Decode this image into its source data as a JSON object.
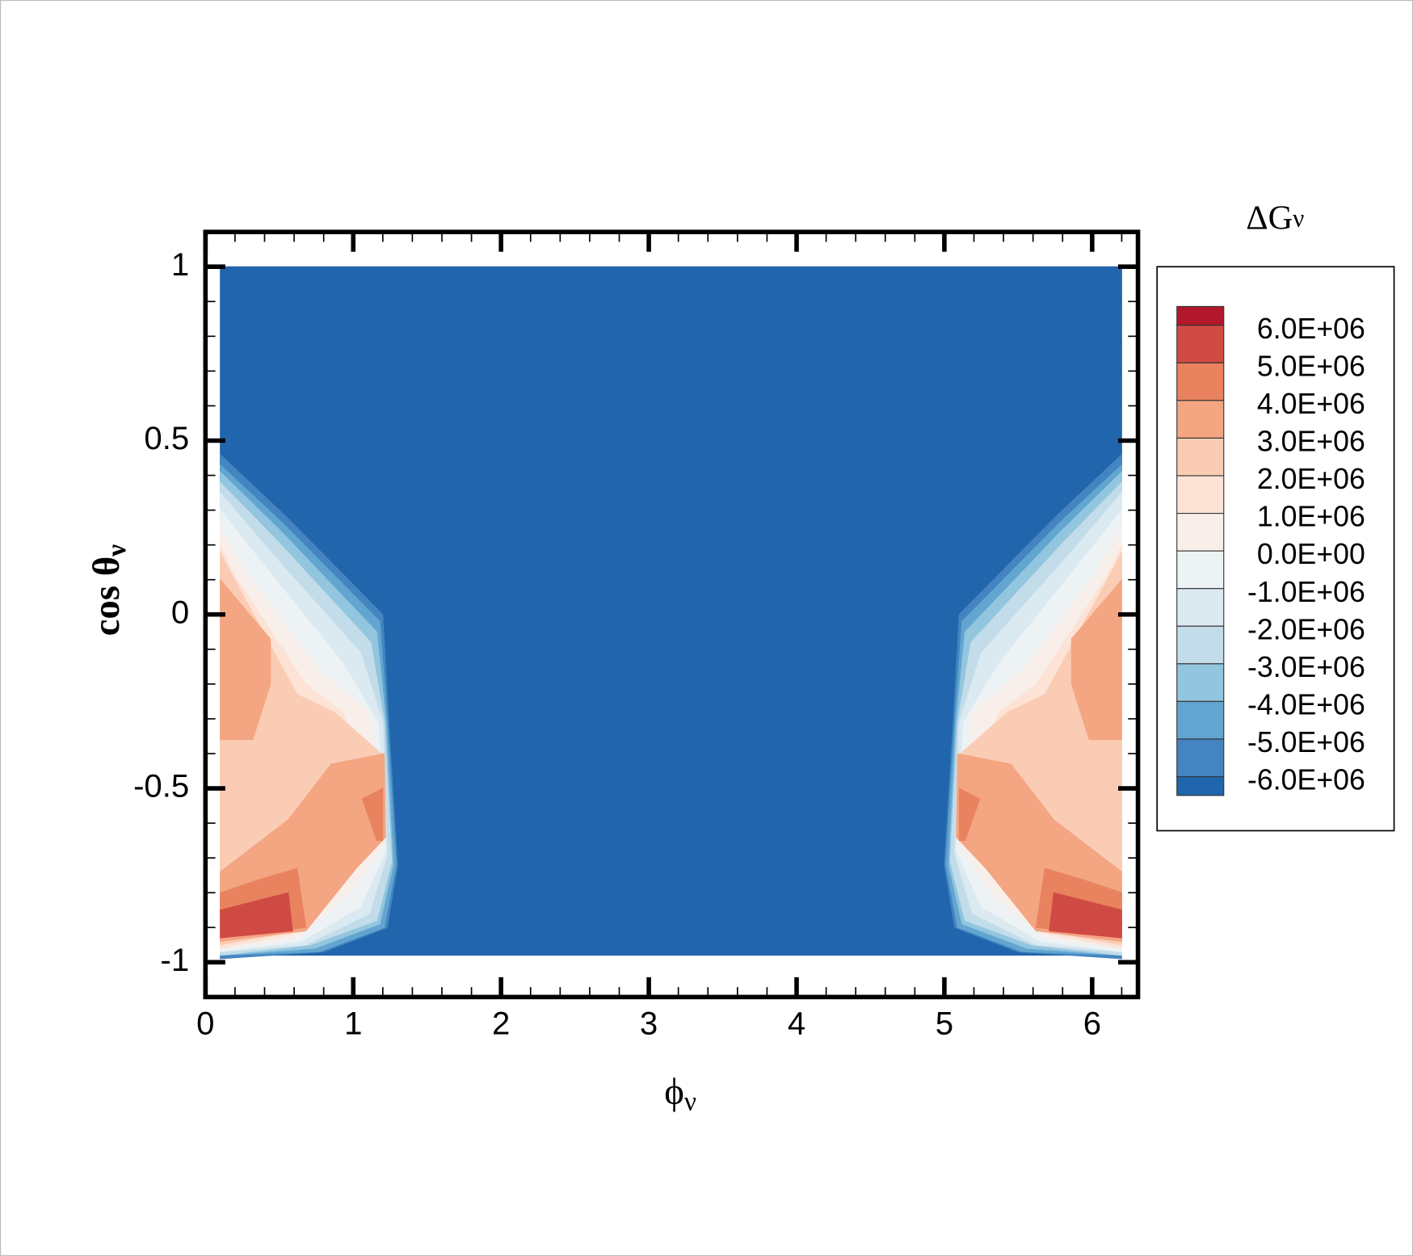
{
  "chart_data": {
    "type": "contour",
    "title": {
      "text": "ΔG",
      "sub": "ν"
    },
    "x_label": {
      "text": "ϕ",
      "sub": "ν"
    },
    "y_label": {
      "text": "cos θ",
      "sub": "ν"
    },
    "xlim": [
      0,
      6.31
    ],
    "ylim": [
      -1.1,
      1.1
    ],
    "xticks": [
      0,
      1,
      2,
      3,
      4,
      5,
      6
    ],
    "yticks": [
      1,
      0.5,
      0,
      -0.5,
      -1
    ],
    "xminor": 0.2,
    "yminor": 0.1,
    "levels": [
      {
        "value": 6000000,
        "label": "6.0E+06"
      },
      {
        "value": 5000000,
        "label": "5.0E+06"
      },
      {
        "value": 4000000,
        "label": "4.0E+06"
      },
      {
        "value": 3000000,
        "label": "3.0E+06"
      },
      {
        "value": 2000000,
        "label": "2.0E+06"
      },
      {
        "value": 1000000,
        "label": "1.0E+06"
      },
      {
        "value": 0,
        "label": "0.0E+00"
      },
      {
        "value": -1000000,
        "label": "-1.0E+06"
      },
      {
        "value": -2000000,
        "label": "-2.0E+06"
      },
      {
        "value": -3000000,
        "label": "-3.0E+06"
      },
      {
        "value": -4000000,
        "label": "-4.0E+06"
      },
      {
        "value": -5000000,
        "label": "-5.0E+06"
      },
      {
        "value": -6000000,
        "label": "-6.0E+06"
      }
    ],
    "colors": [
      "#b2182b",
      "#d04a44",
      "#e8825f",
      "#f4a582",
      "#fbccb4",
      "#fde3d6",
      "#f9efea",
      "#edf2f5",
      "#dbe9f1",
      "#c2dcea",
      "#92c5de",
      "#62a5d0",
      "#4485c1",
      "#2166ac"
    ],
    "regions": [
      {
        "range": [
          null,
          -6000000
        ],
        "points": [
          [
            0.1,
            1.0
          ],
          [
            6.2,
            1.0
          ],
          [
            6.2,
            -0.98
          ],
          [
            0.1,
            -0.98
          ]
        ]
      },
      {
        "range": [
          -6000000,
          -5000000
        ],
        "points": [
          [
            0.1,
            0.46
          ],
          [
            0.55,
            0.28
          ],
          [
            1.2,
            0.0
          ],
          [
            1.24,
            -0.31
          ],
          [
            1.3,
            -0.72
          ],
          [
            1.23,
            -0.9
          ],
          [
            0.8,
            -0.97
          ],
          [
            0.1,
            -0.99
          ]
        ]
      },
      {
        "range": [
          -5000000,
          -4000000
        ],
        "points": [
          [
            0.1,
            0.43
          ],
          [
            0.53,
            0.26
          ],
          [
            1.18,
            -0.02
          ],
          [
            1.23,
            -0.31
          ],
          [
            1.29,
            -0.72
          ],
          [
            1.21,
            -0.9
          ],
          [
            0.77,
            -0.97
          ],
          [
            0.1,
            -0.98
          ]
        ]
      },
      {
        "range": [
          -4000000,
          -3000000
        ],
        "points": [
          [
            0.1,
            0.41
          ],
          [
            0.51,
            0.24
          ],
          [
            1.16,
            -0.05
          ],
          [
            1.22,
            -0.31
          ],
          [
            1.27,
            -0.72
          ],
          [
            1.18,
            -0.89
          ],
          [
            0.74,
            -0.96
          ],
          [
            0.1,
            -0.98
          ]
        ]
      },
      {
        "range": [
          -3000000,
          -2000000
        ],
        "points": [
          [
            0.1,
            0.38
          ],
          [
            0.49,
            0.21
          ],
          [
            1.12,
            -0.08
          ],
          [
            1.21,
            -0.31
          ],
          [
            1.26,
            -0.71
          ],
          [
            1.16,
            -0.88
          ],
          [
            0.71,
            -0.95
          ],
          [
            0.1,
            -0.98
          ]
        ]
      },
      {
        "range": [
          -2000000,
          -1000000
        ],
        "points": [
          [
            0.1,
            0.35
          ],
          [
            0.44,
            0.18
          ],
          [
            1.05,
            -0.11
          ],
          [
            1.2,
            -0.31
          ],
          [
            1.23,
            -0.69
          ],
          [
            1.11,
            -0.86
          ],
          [
            0.68,
            -0.95
          ],
          [
            0.1,
            -0.97
          ]
        ]
      },
      {
        "range": [
          -1000000,
          0
        ],
        "points": [
          [
            0.1,
            0.3
          ],
          [
            0.38,
            0.15
          ],
          [
            0.93,
            -0.14
          ],
          [
            1.17,
            -0.31
          ],
          [
            1.22,
            -0.68
          ],
          [
            1.05,
            -0.84
          ],
          [
            0.65,
            -0.94
          ],
          [
            0.1,
            -0.97
          ]
        ]
      },
      {
        "range": [
          0,
          1000000
        ],
        "points": [
          [
            0.1,
            0.25
          ],
          [
            0.29,
            0.11
          ],
          [
            0.77,
            -0.16
          ],
          [
            1.11,
            -0.28
          ],
          [
            1.21,
            -0.66
          ],
          [
            0.96,
            -0.81
          ],
          [
            0.62,
            -0.93
          ],
          [
            0.1,
            -0.96
          ]
        ]
      },
      {
        "range": [
          1000000,
          2000000
        ],
        "points": [
          [
            0.1,
            0.2
          ],
          [
            0.2,
            0.11
          ],
          [
            0.68,
            -0.2
          ],
          [
            0.93,
            -0.28
          ],
          [
            1.2,
            -0.64
          ],
          [
            0.9,
            -0.78
          ],
          [
            0.59,
            -0.92
          ],
          [
            0.1,
            -0.96
          ]
        ]
      },
      {
        "range": [
          2000000,
          3000000
        ],
        "points": [
          [
            0.1,
            0.18
          ],
          [
            0.16,
            0.13
          ],
          [
            0.62,
            -0.23
          ],
          [
            0.87,
            -0.28
          ],
          [
            1.19,
            -0.4
          ],
          [
            1.22,
            -0.64
          ],
          [
            0.87,
            -0.76
          ],
          [
            0.62,
            -0.91
          ],
          [
            0.1,
            -0.95
          ]
        ]
      },
      {
        "range": [
          3000000,
          4000000
        ],
        "points": [
          [
            0.1,
            0.1
          ],
          [
            0.44,
            -0.07
          ],
          [
            0.44,
            -0.2
          ],
          [
            0.32,
            -0.36
          ],
          [
            0.1,
            -0.36
          ]
        ]
      },
      {
        "range": [
          3000000,
          4000000
        ],
        "points": [
          [
            0.1,
            -0.74
          ],
          [
            0.56,
            -0.59
          ],
          [
            0.85,
            -0.43
          ],
          [
            1.21,
            -0.4
          ],
          [
            1.22,
            -0.64
          ],
          [
            1.02,
            -0.73
          ],
          [
            0.68,
            -0.91
          ],
          [
            0.1,
            -0.94
          ]
        ]
      },
      {
        "range": [
          4000000,
          5000000
        ],
        "points": [
          [
            0.1,
            -0.8
          ],
          [
            0.38,
            -0.76
          ],
          [
            0.62,
            -0.73
          ],
          [
            0.68,
            -0.9
          ],
          [
            0.1,
            -0.93
          ]
        ]
      },
      {
        "range": [
          4000000,
          5000000
        ],
        "points": [
          [
            1.06,
            -0.53
          ],
          [
            1.2,
            -0.5
          ],
          [
            1.2,
            -0.65
          ],
          [
            1.16,
            -0.65
          ]
        ]
      },
      {
        "range": [
          5000000,
          6000000
        ],
        "points": [
          [
            0.1,
            -0.85
          ],
          [
            0.56,
            -0.8
          ],
          [
            0.59,
            -0.91
          ],
          [
            0.1,
            -0.93
          ]
        ]
      },
      {
        "range": [
          -6000000,
          -5000000
        ],
        "points": [
          [
            6.2,
            0.46
          ],
          [
            5.75,
            0.28
          ],
          [
            5.1,
            0.0
          ],
          [
            5.06,
            -0.31
          ],
          [
            5.0,
            -0.72
          ],
          [
            5.07,
            -0.9
          ],
          [
            5.5,
            -0.97
          ],
          [
            6.2,
            -0.99
          ]
        ]
      },
      {
        "range": [
          -5000000,
          -4000000
        ],
        "points": [
          [
            6.2,
            0.43
          ],
          [
            5.77,
            0.26
          ],
          [
            5.12,
            -0.02
          ],
          [
            5.07,
            -0.31
          ],
          [
            5.01,
            -0.72
          ],
          [
            5.09,
            -0.9
          ],
          [
            5.53,
            -0.97
          ],
          [
            6.2,
            -0.98
          ]
        ]
      },
      {
        "range": [
          -4000000,
          -3000000
        ],
        "points": [
          [
            6.2,
            0.41
          ],
          [
            5.79,
            0.24
          ],
          [
            5.14,
            -0.05
          ],
          [
            5.08,
            -0.31
          ],
          [
            5.03,
            -0.72
          ],
          [
            5.12,
            -0.89
          ],
          [
            5.56,
            -0.96
          ],
          [
            6.2,
            -0.98
          ]
        ]
      },
      {
        "range": [
          -3000000,
          -2000000
        ],
        "points": [
          [
            6.2,
            0.38
          ],
          [
            5.81,
            0.21
          ],
          [
            5.18,
            -0.08
          ],
          [
            5.09,
            -0.31
          ],
          [
            5.04,
            -0.71
          ],
          [
            5.14,
            -0.88
          ],
          [
            5.59,
            -0.95
          ],
          [
            6.2,
            -0.98
          ]
        ]
      },
      {
        "range": [
          -2000000,
          -1000000
        ],
        "points": [
          [
            6.2,
            0.35
          ],
          [
            5.86,
            0.18
          ],
          [
            5.25,
            -0.11
          ],
          [
            5.1,
            -0.31
          ],
          [
            5.07,
            -0.69
          ],
          [
            5.19,
            -0.86
          ],
          [
            5.62,
            -0.95
          ],
          [
            6.2,
            -0.97
          ]
        ]
      },
      {
        "range": [
          -1000000,
          0
        ],
        "points": [
          [
            6.2,
            0.3
          ],
          [
            5.92,
            0.15
          ],
          [
            5.37,
            -0.14
          ],
          [
            5.13,
            -0.31
          ],
          [
            5.08,
            -0.68
          ],
          [
            5.25,
            -0.84
          ],
          [
            5.65,
            -0.94
          ],
          [
            6.2,
            -0.97
          ]
        ]
      },
      {
        "range": [
          0,
          1000000
        ],
        "points": [
          [
            6.2,
            0.25
          ],
          [
            6.01,
            0.11
          ],
          [
            5.53,
            -0.16
          ],
          [
            5.19,
            -0.28
          ],
          [
            5.09,
            -0.66
          ],
          [
            5.34,
            -0.81
          ],
          [
            5.68,
            -0.93
          ],
          [
            6.2,
            -0.96
          ]
        ]
      },
      {
        "range": [
          1000000,
          2000000
        ],
        "points": [
          [
            6.2,
            0.2
          ],
          [
            6.1,
            0.11
          ],
          [
            5.62,
            -0.2
          ],
          [
            5.37,
            -0.28
          ],
          [
            5.1,
            -0.64
          ],
          [
            5.4,
            -0.78
          ],
          [
            5.71,
            -0.92
          ],
          [
            6.2,
            -0.96
          ]
        ]
      },
      {
        "range": [
          2000000,
          3000000
        ],
        "points": [
          [
            6.2,
            0.18
          ],
          [
            6.14,
            0.13
          ],
          [
            5.68,
            -0.23
          ],
          [
            5.43,
            -0.28
          ],
          [
            5.11,
            -0.4
          ],
          [
            5.08,
            -0.64
          ],
          [
            5.43,
            -0.76
          ],
          [
            5.68,
            -0.91
          ],
          [
            6.2,
            -0.95
          ]
        ]
      },
      {
        "range": [
          3000000,
          4000000
        ],
        "points": [
          [
            6.2,
            0.1
          ],
          [
            5.86,
            -0.07
          ],
          [
            5.86,
            -0.2
          ],
          [
            5.98,
            -0.36
          ],
          [
            6.2,
            -0.36
          ]
        ]
      },
      {
        "range": [
          3000000,
          4000000
        ],
        "points": [
          [
            6.2,
            -0.74
          ],
          [
            5.74,
            -0.59
          ],
          [
            5.45,
            -0.43
          ],
          [
            5.09,
            -0.4
          ],
          [
            5.08,
            -0.64
          ],
          [
            5.28,
            -0.73
          ],
          [
            5.62,
            -0.91
          ],
          [
            6.2,
            -0.94
          ]
        ]
      },
      {
        "range": [
          4000000,
          5000000
        ],
        "points": [
          [
            6.2,
            -0.8
          ],
          [
            5.92,
            -0.76
          ],
          [
            5.68,
            -0.73
          ],
          [
            5.62,
            -0.9
          ],
          [
            6.2,
            -0.93
          ]
        ]
      },
      {
        "range": [
          4000000,
          5000000
        ],
        "points": [
          [
            5.24,
            -0.53
          ],
          [
            5.1,
            -0.5
          ],
          [
            5.1,
            -0.65
          ],
          [
            5.14,
            -0.65
          ]
        ]
      },
      {
        "range": [
          5000000,
          6000000
        ],
        "points": [
          [
            6.2,
            -0.85
          ],
          [
            5.74,
            -0.8
          ],
          [
            5.71,
            -0.91
          ],
          [
            6.2,
            -0.93
          ]
        ]
      }
    ]
  }
}
